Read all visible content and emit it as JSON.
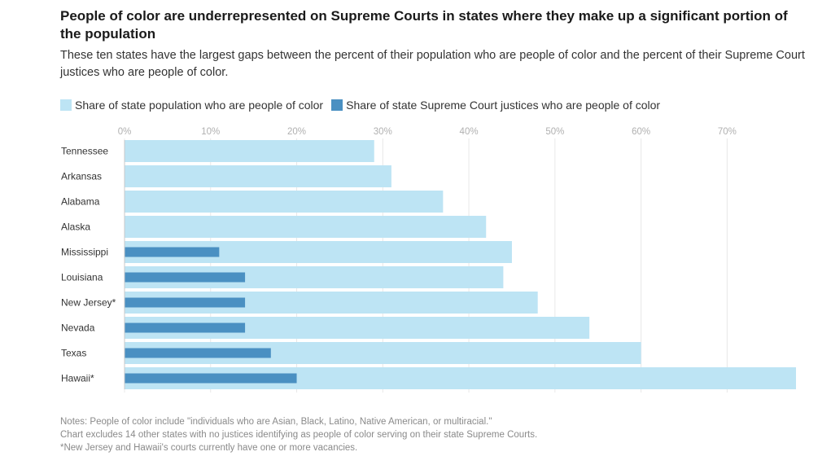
{
  "title": "People of color are underrepresented on Supreme Courts in states where they make up a significant portion of the population",
  "subtitle": "These ten states have the largest gaps between the percent of their population who are people of color and the percent of their Supreme Court justices who are people of color.",
  "colors": {
    "population": "#bde4f4",
    "justices": "#4a90c2",
    "gridline": "#e8e8e8"
  },
  "chart_data": {
    "type": "bar",
    "orientation": "horizontal",
    "categories": [
      "Tennessee",
      "Arkansas",
      "Alabama",
      "Alaska",
      "Mississippi",
      "Louisiana",
      "New Jersey*",
      "Nevada",
      "Texas",
      "Hawaii*"
    ],
    "series": [
      {
        "name": "Share of state population who are people of color",
        "values": [
          29,
          31,
          37,
          42,
          45,
          44,
          48,
          54,
          60,
          78
        ]
      },
      {
        "name": "Share of state Supreme Court justices who are people of color",
        "values": [
          0,
          0,
          0,
          0,
          11,
          14,
          14,
          14,
          17,
          20
        ]
      }
    ],
    "xticks": [
      "0%",
      "10%",
      "20%",
      "30%",
      "40%",
      "50%",
      "60%",
      "70%"
    ],
    "tick_values": [
      0,
      10,
      20,
      30,
      40,
      50,
      60,
      70
    ],
    "xlim": [
      0,
      78
    ],
    "legend_position": "top-left",
    "grid": true
  },
  "notes": [
    "Notes: People of color include \"individuals who are Asian, Black, Latino, Native American, or multiracial.\"",
    "Chart excludes 14 other states with no justices identifying as people of color serving on their state Supreme Courts.",
    "*New Jersey and Hawaii's courts currently have one or more vacancies."
  ]
}
